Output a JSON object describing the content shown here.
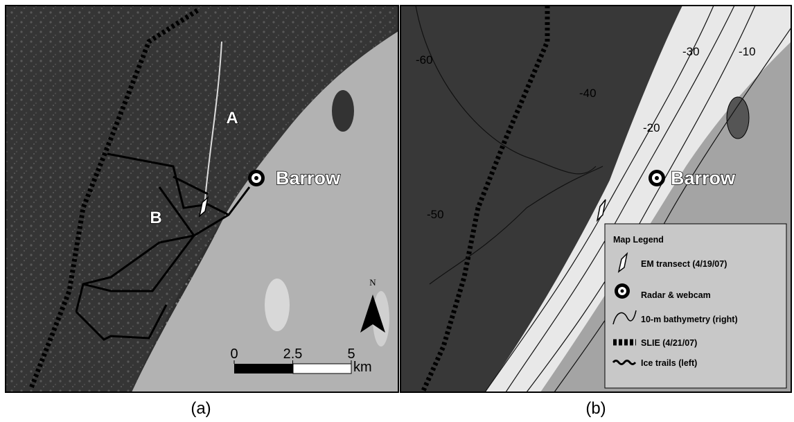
{
  "panel_a": {
    "labels": [
      "A",
      "B"
    ],
    "place": "Barrow",
    "north": "N",
    "scale": {
      "ticks": [
        0,
        2.5,
        5
      ],
      "unit": "km"
    },
    "caption": "(a)"
  },
  "panel_b": {
    "place": "Barrow",
    "contours": [
      -60,
      -50,
      -40,
      -30,
      -20,
      -10
    ],
    "legend": {
      "title": "Map Legend",
      "items": [
        "EM transect (4/19/07)",
        "Radar & webcam",
        "10-m bathymetry (right)",
        "SLIE (4/21/07)",
        "Ice trails (left)"
      ]
    },
    "caption": "(b)"
  }
}
